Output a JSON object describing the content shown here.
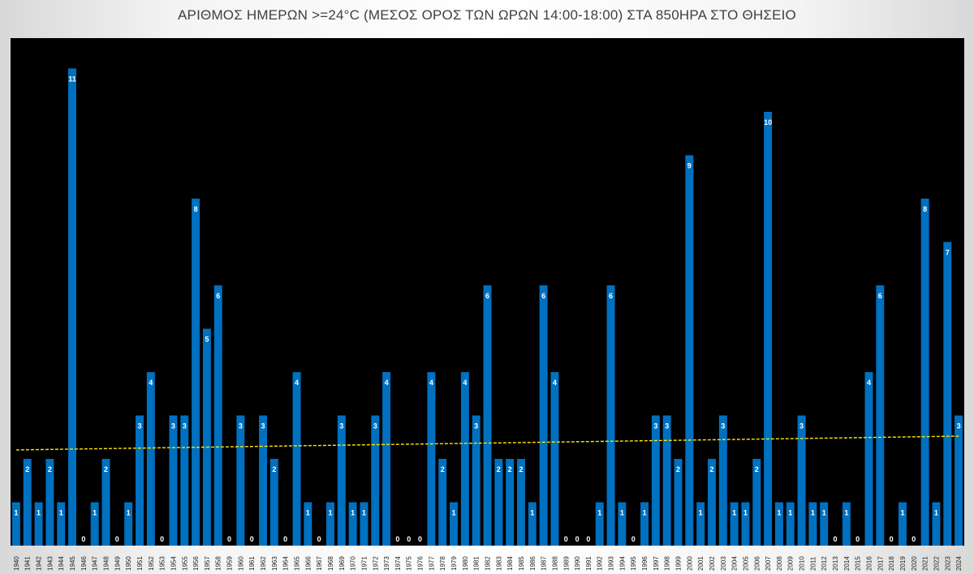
{
  "chart_data": {
    "type": "bar",
    "title": "ΑΡΙΘΜΟΣ ΗΜΕΡΩΝ >=24°C (ΜΕΣΟΣ ΟΡΟΣ ΤΩΝ ΩΡΩΝ 14:00-18:00) ΣΤΑ 850ΗΡΑ ΣΤΟ ΘΗΣΕΙΟ",
    "xlabel": "",
    "ylabel": "",
    "ylim": [
      0,
      11.7
    ],
    "grid": false,
    "legend": "none",
    "categories": [
      "1940",
      "1941",
      "1942",
      "1943",
      "1944",
      "1945",
      "1946",
      "1947",
      "1948",
      "1949",
      "1950",
      "1951",
      "1952",
      "1953",
      "1954",
      "1955",
      "1956",
      "1957",
      "1958",
      "1959",
      "1960",
      "1961",
      "1962",
      "1963",
      "1964",
      "1965",
      "1966",
      "1967",
      "1968",
      "1969",
      "1970",
      "1971",
      "1972",
      "1973",
      "1974",
      "1975",
      "1976",
      "1977",
      "1978",
      "1979",
      "1980",
      "1981",
      "1982",
      "1983",
      "1984",
      "1985",
      "1986",
      "1987",
      "1988",
      "1989",
      "1990",
      "1991",
      "1992",
      "1993",
      "1994",
      "1995",
      "1996",
      "1997",
      "1998",
      "1999",
      "2000",
      "2001",
      "2002",
      "2003",
      "2004",
      "2005",
      "2006",
      "2007",
      "2008",
      "2009",
      "2010",
      "2011",
      "2012",
      "2013",
      "2014",
      "2015",
      "2016",
      "2017",
      "2018",
      "2019",
      "2020",
      "2021",
      "2022",
      "2023",
      "2024"
    ],
    "values": [
      1,
      2,
      1,
      2,
      1,
      11,
      0,
      1,
      2,
      0,
      1,
      3,
      4,
      0,
      3,
      3,
      8,
      5,
      6,
      0,
      3,
      0,
      3,
      2,
      0,
      4,
      1,
      0,
      1,
      3,
      1,
      1,
      3,
      4,
      0,
      0,
      0,
      4,
      2,
      1,
      4,
      3,
      6,
      2,
      2,
      2,
      1,
      6,
      4,
      0,
      0,
      0,
      1,
      6,
      1,
      0,
      1,
      3,
      3,
      2,
      9,
      1,
      2,
      3,
      1,
      1,
      2,
      10,
      1,
      1,
      3,
      1,
      1,
      0,
      1,
      0,
      4,
      6,
      0,
      1,
      0,
      8,
      1,
      7,
      3
    ],
    "trendline": {
      "type": "linear",
      "style": "dashed"
    },
    "colors": {
      "bar": "#0070C0",
      "plot_background": "#000000",
      "trendline": "#FFE600",
      "bar_label": "#FFFFFF"
    }
  }
}
